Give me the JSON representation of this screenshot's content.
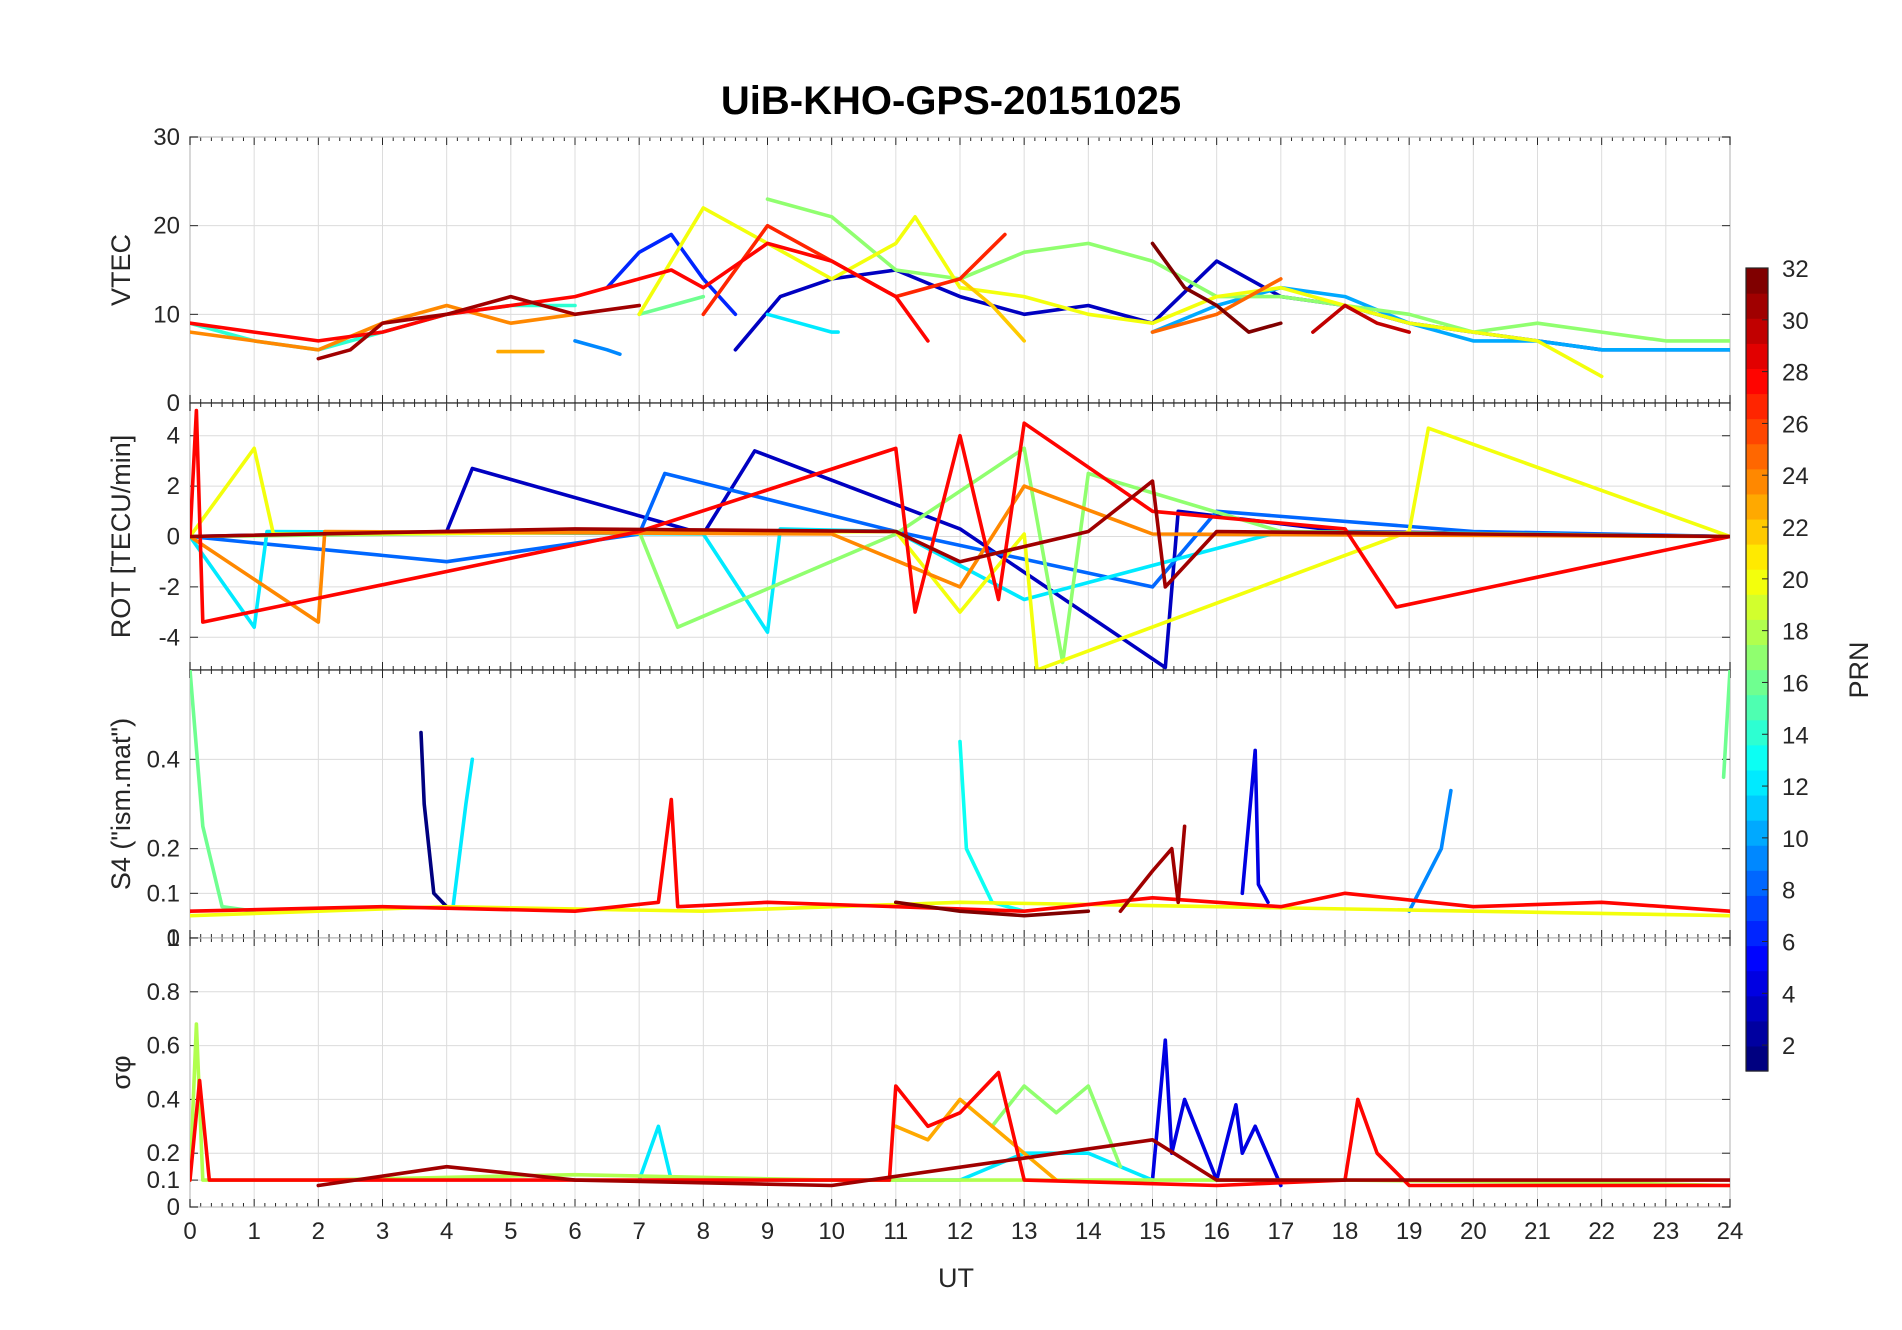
{
  "chart_data": {
    "type": "line",
    "title": "UiB-KHO-GPS-20151025",
    "xlabel": "UT",
    "x_ticks": [
      "0",
      "1",
      "2",
      "3",
      "4",
      "5",
      "6",
      "7",
      "8",
      "9",
      "10",
      "11",
      "12",
      "13",
      "14",
      "15",
      "16",
      "17",
      "18",
      "19",
      "20",
      "21",
      "22",
      "23",
      "24"
    ],
    "xlim": [
      0,
      24
    ],
    "colorbar": {
      "label": "PRN",
      "ticks": [
        "2",
        "4",
        "6",
        "8",
        "10",
        "12",
        "14",
        "16",
        "18",
        "20",
        "22",
        "24",
        "26",
        "28",
        "30",
        "32"
      ],
      "range": [
        1,
        32
      ],
      "colormap": "jet"
    },
    "panels": [
      {
        "ylabel": "VTEC",
        "ylim": [
          0,
          30
        ],
        "y_ticks": [
          "0",
          "10",
          "20",
          "30"
        ],
        "series": [
          {
            "prn": 3,
            "x": [
              8.5,
              9.2,
              10,
              11,
              12,
              13,
              14,
              15,
              16,
              17,
              18,
              19,
              20,
              21,
              22,
              23,
              24
            ],
            "y": [
              6,
              12,
              14,
              15,
              12,
              10,
              11,
              9,
              16,
              12,
              11,
              9,
              8,
              7,
              6,
              6,
              6
            ]
          },
          {
            "prn": 6,
            "x": [
              6.5,
              7,
              7.5,
              8,
              8.5
            ],
            "y": [
              13,
              17,
              19,
              14,
              10
            ]
          },
          {
            "prn": 9,
            "x": [
              6,
              6.5,
              6.7
            ],
            "y": [
              7,
              6,
              5.5
            ]
          },
          {
            "prn": 10,
            "x": [
              15,
              16,
              17,
              18,
              19,
              20,
              21,
              22,
              23,
              24
            ],
            "y": [
              8,
              11,
              13,
              12,
              9,
              7,
              7,
              6,
              6,
              6
            ]
          },
          {
            "prn": 12,
            "x": [
              9,
              9.5,
              10,
              10.1
            ],
            "y": [
              10,
              9,
              8,
              8
            ]
          },
          {
            "prn": 14,
            "x": [
              0,
              1,
              2,
              3,
              4,
              5,
              6
            ],
            "y": [
              9,
              7,
              6,
              8,
              10,
              11,
              11
            ]
          },
          {
            "prn": 16,
            "x": [
              7,
              7.5,
              8
            ],
            "y": [
              10,
              11,
              12
            ]
          },
          {
            "prn": 17,
            "x": [
              9,
              10,
              11,
              12,
              13,
              14,
              15,
              16,
              17,
              18,
              19,
              20,
              21,
              22,
              23,
              24
            ],
            "y": [
              23,
              21,
              15,
              14,
              17,
              18,
              16,
              12,
              12,
              11,
              10,
              8,
              9,
              8,
              7,
              7
            ]
          },
          {
            "prn": 20,
            "x": [
              7,
              8,
              9,
              10,
              11,
              11.3,
              12,
              13,
              14,
              15,
              16,
              17,
              18,
              19,
              20,
              21,
              22
            ],
            "y": [
              10,
              22,
              18,
              14,
              18,
              21,
              13,
              12,
              10,
              9,
              12,
              13,
              11,
              9,
              8,
              7,
              3
            ]
          },
          {
            "prn": 22,
            "x": [
              12,
              12.5,
              13
            ],
            "y": [
              14,
              11,
              7
            ]
          },
          {
            "prn": 23,
            "x": [
              4.8,
              5.5
            ],
            "y": [
              5.8,
              5.8
            ]
          },
          {
            "prn": 24,
            "x": [
              0,
              1,
              2,
              3,
              4,
              5,
              6
            ],
            "y": [
              8,
              7,
              6,
              9,
              11,
              9,
              10
            ]
          },
          {
            "prn": 25,
            "x": [
              15,
              16,
              17
            ],
            "y": [
              8,
              10,
              14
            ]
          },
          {
            "prn": 27,
            "x": [
              8,
              9,
              10,
              11,
              12,
              12.7
            ],
            "y": [
              10,
              20,
              16,
              12,
              14,
              19
            ]
          },
          {
            "prn": 28,
            "x": [
              0,
              1,
              2,
              3,
              4,
              5,
              6,
              7,
              7.5,
              8,
              9,
              10,
              11,
              11.5
            ],
            "y": [
              9,
              8,
              7,
              8,
              10,
              11,
              12,
              14,
              15,
              13,
              18,
              16,
              12,
              7
            ]
          },
          {
            "prn": 30,
            "x": [
              17.5,
              18,
              18.5,
              19
            ],
            "y": [
              8,
              11,
              9,
              8
            ]
          },
          {
            "prn": 31,
            "x": [
              2,
              2.5,
              3,
              4,
              5,
              6,
              7
            ],
            "y": [
              5,
              6,
              9,
              10,
              12,
              10,
              11
            ]
          },
          {
            "prn": 32,
            "x": [
              15,
              15.5,
              16,
              16.5,
              17
            ],
            "y": [
              18,
              13,
              11,
              8,
              9
            ]
          }
        ]
      },
      {
        "ylabel": "ROT [TECU/min]",
        "ylim": [
          -5.3,
          5.3
        ],
        "y_ticks": [
          "-4",
          "-2",
          "0",
          "2",
          "4"
        ],
        "series": [
          {
            "prn": 3,
            "x": [
              0,
              4,
              4.4,
              8,
              8.8,
              12,
              15.2,
              15.4,
              18,
              24
            ],
            "y": [
              0,
              0.2,
              2.7,
              0.1,
              3.4,
              0.3,
              -5.2,
              1,
              0.2,
              0
            ]
          },
          {
            "prn": 8,
            "x": [
              0,
              4,
              7,
              7.4,
              11,
              15,
              16,
              20,
              24
            ],
            "y": [
              0,
              -1,
              0.1,
              2.5,
              0.2,
              -2,
              1,
              0.2,
              0
            ]
          },
          {
            "prn": 12,
            "x": [
              0,
              1,
              1.2,
              8,
              9,
              9.2,
              11,
              13,
              17,
              24
            ],
            "y": [
              0,
              -3.6,
              0.2,
              0.1,
              -3.8,
              0.3,
              0.2,
              -2.5,
              0.2,
              0
            ]
          },
          {
            "prn": 17,
            "x": [
              0,
              7,
              7.6,
              11,
              13,
              13.6,
              14,
              17,
              24
            ],
            "y": [
              0,
              0.2,
              -3.6,
              0.1,
              3.5,
              -5,
              2.5,
              0.2,
              0
            ]
          },
          {
            "prn": 20,
            "x": [
              0,
              1,
              1.3,
              11,
              12,
              13,
              13.2,
              19,
              19.3,
              24
            ],
            "y": [
              0,
              3.5,
              0.1,
              0.2,
              -3,
              0.1,
              -5.3,
              0.2,
              4.3,
              0
            ]
          },
          {
            "prn": 24,
            "x": [
              0,
              2,
              2.1,
              10,
              12,
              13,
              15,
              24
            ],
            "y": [
              0,
              -3.4,
              0.2,
              0.1,
              -2,
              2,
              0.1,
              0
            ]
          },
          {
            "prn": 28,
            "x": [
              0,
              0.1,
              0.2,
              7,
              11,
              11.3,
              12,
              12.6,
              13,
              15,
              18,
              18.8,
              24
            ],
            "y": [
              0,
              5,
              -3.4,
              0.2,
              3.5,
              -3,
              4,
              -2.5,
              4.5,
              1,
              0.3,
              -2.8,
              0
            ]
          },
          {
            "prn": 31,
            "x": [
              0,
              6,
              11,
              12,
              14,
              15,
              15.2,
              16,
              24
            ],
            "y": [
              0,
              0.3,
              0.2,
              -1,
              0.2,
              2.2,
              -2,
              0.2,
              0
            ]
          }
        ]
      },
      {
        "ylabel": "S4 (\"ism.mat\")",
        "ylim": [
          0,
          0.6
        ],
        "y_ticks": [
          "0",
          "0.1",
          "0.2",
          "0.4"
        ],
        "series": [
          {
            "prn": 1,
            "x": [
              3.6,
              3.65,
              3.8,
              4
            ],
            "y": [
              0.46,
              0.3,
              0.1,
              0.07
            ]
          },
          {
            "prn": 4,
            "x": [
              16.4,
              16.6,
              16.65,
              16.8
            ],
            "y": [
              0.1,
              0.42,
              0.12,
              0.08
            ]
          },
          {
            "prn": 9,
            "x": [
              19,
              19.5,
              19.65
            ],
            "y": [
              0.06,
              0.2,
              0.33
            ]
          },
          {
            "prn": 12,
            "x": [
              4.1,
              4.3,
              4.4
            ],
            "y": [
              0.07,
              0.3,
              0.4
            ]
          },
          {
            "prn": 13,
            "x": [
              12,
              12.1,
              12.5,
              13
            ],
            "y": [
              0.44,
              0.2,
              0.08,
              0.06
            ]
          },
          {
            "prn": 16,
            "x": [
              0,
              0.2,
              0.5,
              1
            ],
            "y": [
              0.6,
              0.25,
              0.07,
              0.06
            ]
          },
          {
            "prn": 16,
            "x": [
              23.9,
              24
            ],
            "y": [
              0.36,
              0.6
            ]
          },
          {
            "prn": 20,
            "x": [
              0,
              4,
              8,
              12,
              16,
              20,
              24
            ],
            "y": [
              0.05,
              0.07,
              0.06,
              0.08,
              0.07,
              0.06,
              0.05
            ]
          },
          {
            "prn": 28,
            "x": [
              0,
              3,
              6,
              7.3,
              7.5,
              7.6,
              9,
              11,
              13,
              15,
              17,
              18,
              20,
              22,
              24
            ],
            "y": [
              0.06,
              0.07,
              0.06,
              0.08,
              0.31,
              0.07,
              0.08,
              0.07,
              0.06,
              0.09,
              0.07,
              0.1,
              0.07,
              0.08,
              0.06
            ]
          },
          {
            "prn": 31,
            "x": [
              14.5,
              15,
              15.3,
              15.4,
              15.5
            ],
            "y": [
              0.06,
              0.15,
              0.2,
              0.08,
              0.25
            ]
          },
          {
            "prn": 32,
            "x": [
              11,
              12,
              13,
              14
            ],
            "y": [
              0.08,
              0.06,
              0.05,
              0.06
            ]
          }
        ]
      },
      {
        "ylabel": "σφ",
        "ylim": [
          0,
          1
        ],
        "y_ticks": [
          "0",
          "0.1",
          "0.2",
          "0.4",
          "0.6",
          "0.8",
          "1"
        ],
        "series": [
          {
            "prn": 4,
            "x": [
              15,
              15.2,
              15.3,
              15.5,
              16,
              16.3,
              16.4,
              16.6,
              17
            ],
            "y": [
              0.1,
              0.62,
              0.2,
              0.4,
              0.1,
              0.38,
              0.2,
              0.3,
              0.08
            ]
          },
          {
            "prn": 12,
            "x": [
              7,
              7.3,
              7.5,
              12,
              13,
              14,
              15
            ],
            "y": [
              0.1,
              0.3,
              0.1,
              0.1,
              0.2,
              0.2,
              0.1
            ]
          },
          {
            "prn": 17,
            "x": [
              12.5,
              13,
              13.5,
              14,
              14.5
            ],
            "y": [
              0.3,
              0.45,
              0.35,
              0.45,
              0.15
            ]
          },
          {
            "prn": 18,
            "x": [
              0,
              0.1,
              0.2,
              2,
              6,
              10,
              14,
              18,
              22,
              24
            ],
            "y": [
              0.1,
              0.68,
              0.1,
              0.1,
              0.12,
              0.1,
              0.1,
              0.1,
              0.09,
              0.08
            ]
          },
          {
            "prn": 23,
            "x": [
              11,
              11.5,
              12,
              12.5,
              13,
              13.5
            ],
            "y": [
              0.3,
              0.25,
              0.4,
              0.3,
              0.2,
              0.1
            ]
          },
          {
            "prn": 28,
            "x": [
              0,
              0.15,
              0.3,
              4,
              8,
              10.9,
              11,
              11.5,
              12,
              12.6,
              13,
              16,
              18,
              18.2,
              18.5,
              19,
              24
            ],
            "y": [
              0.1,
              0.47,
              0.1,
              0.1,
              0.1,
              0.1,
              0.45,
              0.3,
              0.35,
              0.5,
              0.1,
              0.08,
              0.1,
              0.4,
              0.2,
              0.08,
              0.08
            ]
          },
          {
            "prn": 31,
            "x": [
              2,
              4,
              6,
              8,
              10,
              15,
              16,
              20,
              24
            ],
            "y": [
              0.08,
              0.15,
              0.1,
              0.09,
              0.08,
              0.25,
              0.1,
              0.1,
              0.1
            ]
          }
        ]
      }
    ]
  }
}
